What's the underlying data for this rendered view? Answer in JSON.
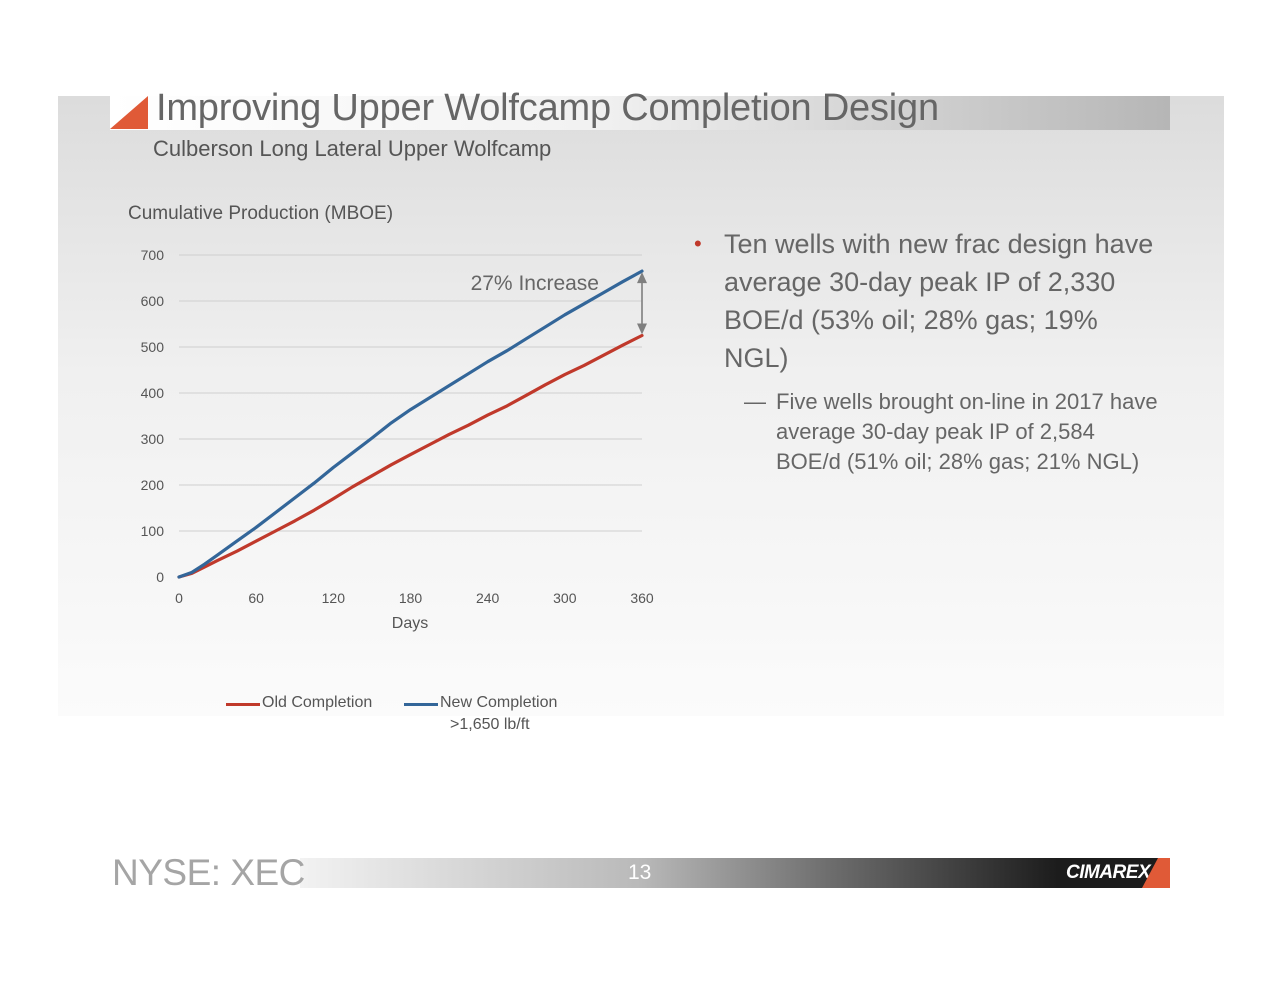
{
  "slide": {
    "title": "Improving Upper Wolfcamp Completion Design",
    "subtitle": "Culberson Long Lateral Upper Wolfcamp"
  },
  "bullets": {
    "main": "Ten wells with new frac design have average 30-day peak IP of 2,330 BOE/d (53% oil; 28% gas; 19% NGL)",
    "sub": "Five wells brought on-line in 2017 have average 30-day peak IP of 2,584 BOE/d (51% oil; 28% gas; 21% NGL)"
  },
  "footer": {
    "ticker": "NYSE: XEC",
    "page": "13",
    "logo": "CIMAREX"
  },
  "colors": {
    "accent": "#e05a37",
    "old_series": "#c0392b",
    "new_series": "#336699",
    "bullet": "#c0392b"
  },
  "chart_data": {
    "type": "line",
    "title": "",
    "ylabel": "Cumulative Production (MBOE)",
    "xlabel": "Days",
    "xlim": [
      0,
      360
    ],
    "ylim": [
      0,
      700
    ],
    "xticks": [
      0,
      60,
      120,
      180,
      240,
      300,
      360
    ],
    "yticks": [
      0,
      100,
      200,
      300,
      400,
      500,
      600,
      700
    ],
    "grid": "horizontal",
    "annotation": "27% Increase",
    "series": [
      {
        "name": "Old Completion",
        "color": "#c0392b",
        "x": [
          0,
          10,
          20,
          30,
          45,
          60,
          75,
          90,
          105,
          120,
          135,
          150,
          165,
          180,
          195,
          210,
          225,
          240,
          255,
          270,
          285,
          300,
          315,
          330,
          345,
          360
        ],
        "y": [
          0,
          8,
          22,
          36,
          56,
          78,
          100,
          122,
          145,
          170,
          196,
          220,
          244,
          266,
          288,
          310,
          330,
          352,
          372,
          395,
          418,
          440,
          460,
          482,
          504,
          525
        ]
      },
      {
        "name": "New Completion",
        "subtitle": ">1,650 lb/ft",
        "color": "#336699",
        "x": [
          0,
          10,
          20,
          30,
          45,
          60,
          75,
          90,
          105,
          120,
          135,
          150,
          165,
          180,
          195,
          210,
          225,
          240,
          255,
          270,
          285,
          300,
          315,
          330,
          345,
          360
        ],
        "y": [
          0,
          10,
          28,
          48,
          78,
          108,
          140,
          172,
          204,
          238,
          270,
          302,
          335,
          364,
          390,
          416,
          442,
          468,
          492,
          518,
          544,
          570,
          594,
          618,
          642,
          665
        ]
      }
    ]
  }
}
